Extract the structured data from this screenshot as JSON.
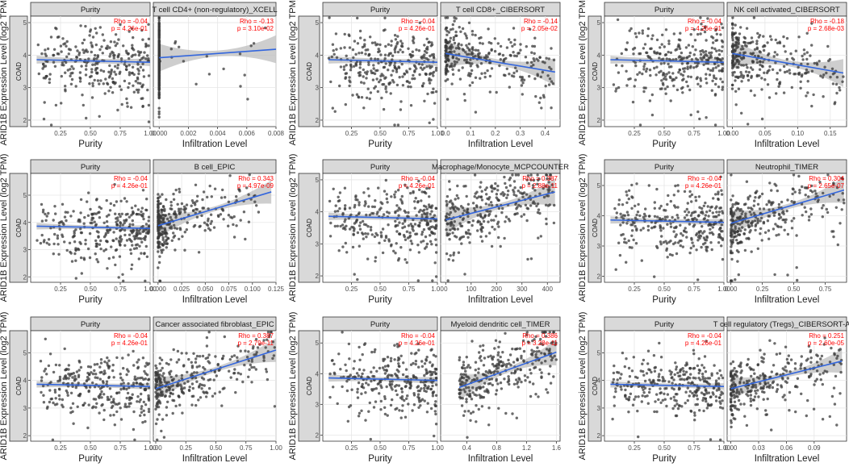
{
  "figure": {
    "ylabel": "ARID1B Expression Level (log2 TPM)",
    "strip_label": "COAD",
    "purity_label": "Purity",
    "xlabel_infiltration": "Infiltration Level",
    "xlabel_purity": "Purity"
  },
  "colors": {
    "point": "#3a3a3a",
    "line": "#3366dd",
    "ci": "#bdbdbd",
    "grid": "#e6e6e6",
    "strip": "#d9d9d9",
    "stat": "#ff0000"
  },
  "chart_data": [
    {
      "type": "scatter",
      "title": "T cell CD4+ (non-regulatory)_XCELL",
      "purity": {
        "rho": "Rho = -0.04",
        "p": "p = 4.26e-01",
        "xlim": [
          0.0,
          1.0
        ],
        "xticks": [
          "0.25",
          "0.50",
          "0.75",
          "1.00"
        ],
        "xtick_values": [
          0.25,
          0.5,
          0.75,
          1.0
        ],
        "fit": [
          [
            0.05,
            3.86
          ],
          [
            1.0,
            3.78
          ]
        ]
      },
      "infiltration": {
        "rho": "Rho = -0.13",
        "p": "p = 3.10e-02",
        "xlim": [
          -0.0004,
          0.008
        ],
        "xticks": [
          "0.000",
          "0.002",
          "0.004",
          "0.006",
          "0.008"
        ],
        "xtick_values": [
          0.0,
          0.002,
          0.004,
          0.006,
          0.008
        ],
        "fit": [
          [
            0.0,
            3.92
          ],
          [
            0.008,
            4.18
          ]
        ],
        "dist": "zero"
      },
      "ylim": [
        1.8,
        5.2
      ],
      "yticks": [
        "2",
        "3",
        "4",
        "5"
      ],
      "ytick_values": [
        2,
        3,
        4,
        5
      ]
    },
    {
      "type": "scatter",
      "title": "T cell CD8+_CIBERSORT",
      "purity": {
        "rho": "Rho = -0.04",
        "p": "p = 4.26e-01",
        "xlim": [
          0.0,
          1.0
        ],
        "xticks": [
          "0.25",
          "0.50",
          "0.75",
          "1.00"
        ],
        "xtick_values": [
          0.25,
          0.5,
          0.75,
          1.0
        ],
        "fit": [
          [
            0.05,
            3.86
          ],
          [
            1.0,
            3.78
          ]
        ]
      },
      "infiltration": {
        "rho": "Rho = -0.14",
        "p": "p = 2.05e-02",
        "xlim": [
          -0.02,
          0.46
        ],
        "xticks": [
          "0.0",
          "0.1",
          "0.2",
          "0.3",
          "0.4"
        ],
        "xtick_values": [
          0.0,
          0.1,
          0.2,
          0.3,
          0.4
        ],
        "fit": [
          [
            0.0,
            4.05
          ],
          [
            0.44,
            3.48
          ]
        ],
        "dist": "skew"
      },
      "ylim": [
        1.8,
        5.2
      ],
      "yticks": [
        "2",
        "3",
        "4",
        "5"
      ],
      "ytick_values": [
        2,
        3,
        4,
        5
      ]
    },
    {
      "type": "scatter",
      "title": "NK cell activated_CIBERSORT",
      "purity": {
        "rho": "Rho = -0.04",
        "p": "p = 4.26e-01",
        "xlim": [
          0.0,
          1.0
        ],
        "xticks": [
          "0.25",
          "0.50",
          "0.75",
          "1.00"
        ],
        "xtick_values": [
          0.25,
          0.5,
          0.75,
          1.0
        ],
        "fit": [
          [
            0.05,
            3.86
          ],
          [
            1.0,
            3.78
          ]
        ]
      },
      "infiltration": {
        "rho": "Rho = -0.18",
        "p": "p = 2.68e-03",
        "xlim": [
          -0.008,
          0.175
        ],
        "xticks": [
          "0.00",
          "0.05",
          "0.10",
          "0.15"
        ],
        "xtick_values": [
          0.0,
          0.05,
          0.1,
          0.15
        ],
        "fit": [
          [
            0.0,
            4.05
          ],
          [
            0.17,
            3.45
          ]
        ],
        "dist": "skew"
      },
      "ylim": [
        1.8,
        5.2
      ],
      "yticks": [
        "2",
        "3",
        "4",
        "5"
      ],
      "ytick_values": [
        2,
        3,
        4,
        5
      ]
    },
    {
      "type": "scatter",
      "title": "B cell_EPIC",
      "purity": {
        "rho": "Rho = -0.04",
        "p": "p = 4.26e-01",
        "xlim": [
          0.0,
          1.0
        ],
        "xticks": [
          "0.25",
          "0.50",
          "0.75",
          "1.00"
        ],
        "xtick_values": [
          0.25,
          0.5,
          0.75,
          1.0
        ],
        "fit": [
          [
            0.05,
            3.86
          ],
          [
            1.0,
            3.78
          ]
        ]
      },
      "infiltration": {
        "rho": "Rho = 0.343",
        "p": "p = 4.97e-09",
        "xlim": [
          -0.005,
          0.125
        ],
        "xticks": [
          "0.000",
          "0.025",
          "0.050",
          "0.075",
          "0.100",
          "0.125"
        ],
        "xtick_values": [
          0.0,
          0.025,
          0.05,
          0.075,
          0.1,
          0.125
        ],
        "fit": [
          [
            0.0,
            3.88
          ],
          [
            0.12,
            5.12
          ]
        ],
        "dist": "cluster"
      },
      "ylim": [
        1.8,
        5.8
      ],
      "yticks": [
        "2",
        "3",
        "4",
        "5"
      ],
      "ytick_values": [
        2,
        3,
        4,
        5
      ]
    },
    {
      "type": "scatter",
      "title": "Macrophage/Monocyte_MCPCOUNTER",
      "purity": {
        "rho": "Rho = -0.04",
        "p": "p = 4.26e-01",
        "xlim": [
          0.0,
          1.0
        ],
        "xticks": [
          "0.25",
          "0.50",
          "0.75",
          "1.00"
        ],
        "xtick_values": [
          0.25,
          0.5,
          0.75,
          1.0
        ],
        "fit": [
          [
            0.05,
            3.86
          ],
          [
            1.0,
            3.78
          ]
        ]
      },
      "infiltration": {
        "rho": "Rho = 0.387",
        "p": "p = 2.88e-11",
        "xlim": [
          -20,
          450
        ],
        "xticks": [
          "0",
          "100",
          "200",
          "300",
          "400"
        ],
        "xtick_values": [
          0,
          100,
          200,
          300,
          400
        ],
        "fit": [
          [
            0,
            3.75
          ],
          [
            430,
            4.62
          ]
        ],
        "dist": "spread"
      },
      "ylim": [
        1.8,
        5.2
      ],
      "yticks": [
        "2",
        "3",
        "4",
        "5"
      ],
      "ytick_values": [
        2,
        3,
        4,
        5
      ]
    },
    {
      "type": "scatter",
      "title": "Neutrophil_TIMER",
      "purity": {
        "rho": "Rho = -0.04",
        "p": "p = 4.26e-01",
        "xlim": [
          0.0,
          1.0
        ],
        "xticks": [
          "0.25",
          "0.50",
          "0.75",
          "1.00"
        ],
        "xtick_values": [
          0.25,
          0.5,
          0.75,
          1.0
        ],
        "fit": [
          [
            0.05,
            3.86
          ],
          [
            1.0,
            3.78
          ]
        ]
      },
      "infiltration": {
        "rho": "Rho = 0.304",
        "p": "p = 2.65e-07",
        "xlim": [
          -0.03,
          0.92
        ],
        "xticks": [
          "0.00",
          "0.25",
          "0.50",
          "0.75"
        ],
        "xtick_values": [
          0.0,
          0.25,
          0.5,
          0.75
        ],
        "fit": [
          [
            0.0,
            3.75
          ],
          [
            0.9,
            4.85
          ]
        ],
        "dist": "skew"
      },
      "ylim": [
        1.8,
        5.4
      ],
      "yticks": [
        "2",
        "3",
        "4",
        "5"
      ],
      "ytick_values": [
        2,
        3,
        4,
        5
      ]
    },
    {
      "type": "scatter",
      "title": "Cancer associated fibroblast_EPIC",
      "purity": {
        "rho": "Rho = -0.04",
        "p": "p = 4.26e-01",
        "xlim": [
          0.0,
          1.0
        ],
        "xticks": [
          "0.25",
          "0.50",
          "0.75",
          "1.00"
        ],
        "xtick_values": [
          0.25,
          0.5,
          0.75,
          1.0
        ],
        "fit": [
          [
            0.05,
            3.86
          ],
          [
            1.0,
            3.78
          ]
        ]
      },
      "infiltration": {
        "rho": "Rho = 0.387",
        "p": "p = 2.79e-11",
        "xlim": [
          -0.02,
          1.0
        ],
        "xticks": [
          "0.00",
          "0.25",
          "0.50",
          "0.75",
          "1.00"
        ],
        "xtick_values": [
          0.0,
          0.25,
          0.5,
          0.75,
          1.0
        ],
        "fit": [
          [
            0.0,
            3.7
          ],
          [
            1.0,
            5.1
          ]
        ],
        "dist": "skew"
      },
      "ylim": [
        1.8,
        5.8
      ],
      "yticks": [
        "2",
        "3",
        "4",
        "5"
      ],
      "ytick_values": [
        2,
        3,
        4,
        5
      ]
    },
    {
      "type": "scatter",
      "title": "Myeloid dendritic cell_TIMER",
      "purity": {
        "rho": "Rho = -0.04",
        "p": "p = 4.26e-01",
        "xlim": [
          0.0,
          1.0
        ],
        "xticks": [
          "0.25",
          "0.50",
          "0.75",
          "1.00"
        ],
        "xtick_values": [
          0.25,
          0.5,
          0.75,
          1.0
        ],
        "fit": [
          [
            0.05,
            3.86
          ],
          [
            1.0,
            3.78
          ]
        ]
      },
      "infiltration": {
        "rho": "Rho = 0.386",
        "p": "p = 3.28e-11",
        "xlim": [
          0.05,
          1.65
        ],
        "xticks": [
          "0.4",
          "0.8",
          "1.2",
          "1.6"
        ],
        "xtick_values": [
          0.4,
          0.8,
          1.2,
          1.6
        ],
        "fit": [
          [
            0.3,
            3.55
          ],
          [
            1.6,
            4.7
          ]
        ],
        "dist": "spread"
      },
      "ylim": [
        1.8,
        5.4
      ],
      "yticks": [
        "2",
        "3",
        "4",
        "5"
      ],
      "ytick_values": [
        2,
        3,
        4,
        5
      ]
    },
    {
      "type": "scatter",
      "title": "T cell regulatory (Tregs)_CIBERSORT-ABS",
      "purity": {
        "rho": "Rho = -0.04",
        "p": "p = 4.26e-01",
        "xlim": [
          0.0,
          1.0
        ],
        "xticks": [
          "0.25",
          "0.50",
          "0.75",
          "1.00"
        ],
        "xtick_values": [
          0.25,
          0.5,
          0.75,
          1.0
        ],
        "fit": [
          [
            0.05,
            3.86
          ],
          [
            1.0,
            3.78
          ]
        ]
      },
      "infiltration": {
        "rho": "Rho = 0.251",
        "p": "p = 2.60e-05",
        "xlim": [
          -0.004,
          0.125
        ],
        "xticks": [
          "0.00",
          "0.03",
          "0.06",
          "0.09"
        ],
        "xtick_values": [
          0.0,
          0.03,
          0.06,
          0.09
        ],
        "fit": [
          [
            0.0,
            3.7
          ],
          [
            0.12,
            4.7
          ]
        ],
        "dist": "skew"
      },
      "ylim": [
        1.8,
        5.8
      ],
      "yticks": [
        "2",
        "3",
        "4",
        "5"
      ],
      "ytick_values": [
        2,
        3,
        4,
        5
      ]
    }
  ]
}
